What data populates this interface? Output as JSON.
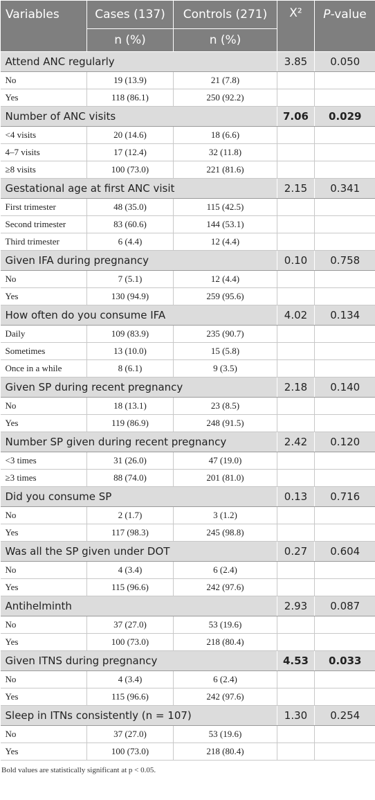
{
  "table": {
    "header": {
      "variables": "Variables",
      "cases": "Cases (137)",
      "controls": "Controls (271)",
      "chi2": "X²",
      "p": "P-value",
      "cases_sub": "n (%)",
      "controls_sub": "n (%)"
    },
    "groups": [
      {
        "label": "Attend ANC regularly",
        "chi2": "3.85",
        "p": "0.050",
        "bold": false,
        "items": [
          [
            "No",
            "19 (13.9)",
            "21 (7.8)"
          ],
          [
            "Yes",
            "118 (86.1)",
            "250 (92.2)"
          ]
        ]
      },
      {
        "label": "Number of ANC visits",
        "chi2": "7.06",
        "p": "0.029",
        "bold": true,
        "items": [
          [
            "<4 visits",
            "20 (14.6)",
            "18 (6.6)"
          ],
          [
            "4–7 visits",
            "17 (12.4)",
            "32 (11.8)"
          ],
          [
            "≥8 visits",
            "100 (73.0)",
            "221 (81.6)"
          ]
        ]
      },
      {
        "label": "Gestational age at first ANC visit",
        "chi2": "2.15",
        "p": "0.341",
        "bold": false,
        "items": [
          [
            "First trimester",
            "48 (35.0)",
            "115 (42.5)"
          ],
          [
            "Second trimester",
            "83 (60.6)",
            "144 (53.1)"
          ],
          [
            "Third trimester",
            "6 (4.4)",
            "12 (4.4)"
          ]
        ]
      },
      {
        "label": "Given IFA during pregnancy",
        "chi2": "0.10",
        "p": "0.758",
        "bold": false,
        "items": [
          [
            "No",
            "7 (5.1)",
            "12 (4.4)"
          ],
          [
            "Yes",
            "130 (94.9)",
            "259 (95.6)"
          ]
        ]
      },
      {
        "label": "How often do you consume IFA",
        "chi2": "4.02",
        "p": "0.134",
        "bold": false,
        "items": [
          [
            "Daily",
            "109 (83.9)",
            "235 (90.7)"
          ],
          [
            "Sometimes",
            "13 (10.0)",
            "15 (5.8)"
          ],
          [
            "Once in a while",
            "8 (6.1)",
            "9 (3.5)"
          ]
        ]
      },
      {
        "label": "Given SP during recent pregnancy",
        "chi2": "2.18",
        "p": "0.140",
        "bold": false,
        "items": [
          [
            "No",
            "18 (13.1)",
            "23 (8.5)"
          ],
          [
            "Yes",
            "119 (86.9)",
            "248 (91.5)"
          ]
        ]
      },
      {
        "label": "Number SP given during recent pregnancy",
        "chi2": "2.42",
        "p": "0.120",
        "bold": false,
        "items": [
          [
            "<3 times",
            "31 (26.0)",
            "47 (19.0)"
          ],
          [
            "≥3 times",
            "88 (74.0)",
            "201 (81.0)"
          ]
        ]
      },
      {
        "label": "Did you consume SP",
        "chi2": "0.13",
        "p": "0.716",
        "bold": false,
        "items": [
          [
            "No",
            "2 (1.7)",
            "3 (1.2)"
          ],
          [
            "Yes",
            "117 (98.3)",
            "245 (98.8)"
          ]
        ]
      },
      {
        "label": "Was all the SP given under DOT",
        "chi2": "0.27",
        "p": "0.604",
        "bold": false,
        "items": [
          [
            "No",
            "4 (3.4)",
            "6 (2.4)"
          ],
          [
            "Yes",
            "115 (96.6)",
            "242 (97.6)"
          ]
        ]
      },
      {
        "label": "Antihelminth",
        "chi2": "2.93",
        "p": "0.087",
        "bold": false,
        "items": [
          [
            "No",
            "37 (27.0)",
            "53 (19.6)"
          ],
          [
            "Yes",
            "100 (73.0)",
            "218 (80.4)"
          ]
        ]
      },
      {
        "label": "Given ITNS during pregnancy",
        "chi2": "4.53",
        "p": "0.033",
        "bold": true,
        "items": [
          [
            "No",
            "4 (3.4)",
            "6 (2.4)"
          ],
          [
            "Yes",
            "115 (96.6)",
            "242 (97.6)"
          ]
        ]
      },
      {
        "label": "Sleep in ITNs consistently (n = 107)",
        "chi2": "1.30",
        "p": "0.254",
        "bold": false,
        "items": [
          [
            "No",
            "37 (27.0)",
            "53 (19.6)"
          ],
          [
            "Yes",
            "100 (73.0)",
            "218 (80.4)"
          ]
        ]
      }
    ],
    "footnote": "Bold values are statistically significant at p < 0.05."
  }
}
